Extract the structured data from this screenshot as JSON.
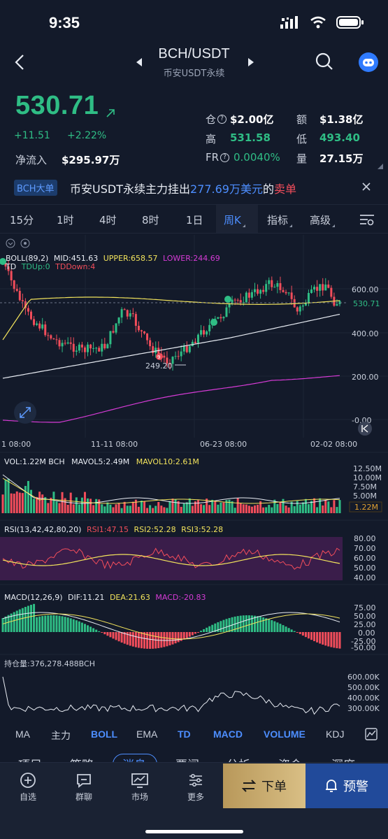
{
  "status": {
    "time": "9:35"
  },
  "header": {
    "pair": "BCH/USDT",
    "subtitle": "币安USDT永续"
  },
  "quote": {
    "last": "530.71",
    "change_abs": "+11.51",
    "change_pct": "+2.22%",
    "net_inflow_label": "净流入",
    "net_inflow_value": "$295.97万",
    "oi_label": "仓",
    "oi_value": "$2.00亿",
    "amount_label": "额",
    "amount_value": "$1.38亿",
    "high_label": "高",
    "high_value": "531.58",
    "low_label": "低",
    "low_value": "493.40",
    "fr_label": "FR",
    "fr_value": "0.0040%",
    "vol_label": "量",
    "vol_value": "27.15万"
  },
  "notice": {
    "tag": "BCH大单",
    "text_a": "币安USDT永续主力挂出",
    "text_amount": "277.69万美元",
    "text_b": "的",
    "text_side": "卖单"
  },
  "timeframes": {
    "items": [
      "15分",
      "1时",
      "4时",
      "8时",
      "1日",
      "周K",
      "指标",
      "高级"
    ],
    "active": "周K"
  },
  "chart_labels": {
    "boll": "BOLL(89,2)",
    "mid": "MID:451.63",
    "upper": "UPPER:658.57",
    "lower": "LOWER:244.69",
    "td": "TD",
    "tdup": "TDUp:0",
    "tddown": "TDDown:4",
    "low_mark": "249.20",
    "price_tag": "530.71",
    "y_600": "600.00",
    "y_400": "400.00",
    "y_200": "200.00",
    "y_0": "-0.00",
    "x1": "1 08:00",
    "x2": "11-11 08:00",
    "x3": "06-23 08:00",
    "x4": "02-02 08:00",
    "vol": "VOL:1.22M BCH",
    "mavol5": "MAVOL5:2.49M",
    "mavol10": "MAVOL10:2.61M",
    "vol_y1": "12.50M",
    "vol_y2": "10.00M",
    "vol_y3": "7.50M",
    "vol_y4": "5.00M",
    "vol_tag": "1.22M",
    "rsi": "RSI(13,42,42,80,20)",
    "rsi1": "RSI1:47.15",
    "rsi2": "RSI2:52.28",
    "rsi3": "RSI3:52.28",
    "rsi_y80": "80.00",
    "rsi_y70": "70.00",
    "rsi_y60": "60.00",
    "rsi_y50": "50.00",
    "rsi_y40": "40.00",
    "macd": "MACD(12,26,9)",
    "dif": "DIF:11.21",
    "dea": "DEA:21.63",
    "macd_v": "MACD:-20.83",
    "macd_y75": "75.00",
    "macd_y50": "50.00",
    "macd_y25": "25.00",
    "macd_y0": "0.00",
    "macd_yn25": "-25.00",
    "macd_yn50": "-50.00",
    "oi": "持仓量:376,278.488BCH",
    "oi_y600": "600.00K",
    "oi_y500": "500.00K",
    "oi_y400": "400.00K",
    "oi_y300": "300.00K"
  },
  "indicator_tabs": [
    {
      "label": "MA",
      "on": false
    },
    {
      "label": "主力",
      "on": false
    },
    {
      "label": "BOLL",
      "on": true
    },
    {
      "label": "EMA",
      "on": false
    },
    {
      "label": "TD",
      "on": true
    },
    {
      "label": "MACD",
      "on": true
    },
    {
      "label": "VOLUME",
      "on": true
    },
    {
      "label": "KDJ",
      "on": false
    }
  ],
  "sub_tabs": [
    "项目",
    "策略",
    "消息",
    "要闻",
    "分析",
    "资金",
    "深度"
  ],
  "bottom_nav": {
    "items": [
      "自选",
      "群聊",
      "市场",
      "更多"
    ],
    "order": "下单",
    "alert": "预警"
  },
  "colors": {
    "up": "#2fbd85",
    "down": "#f24d5b",
    "accent": "#4d8eff",
    "boll_upper": "#f2e35c",
    "boll_lower": "#d63bd6"
  }
}
